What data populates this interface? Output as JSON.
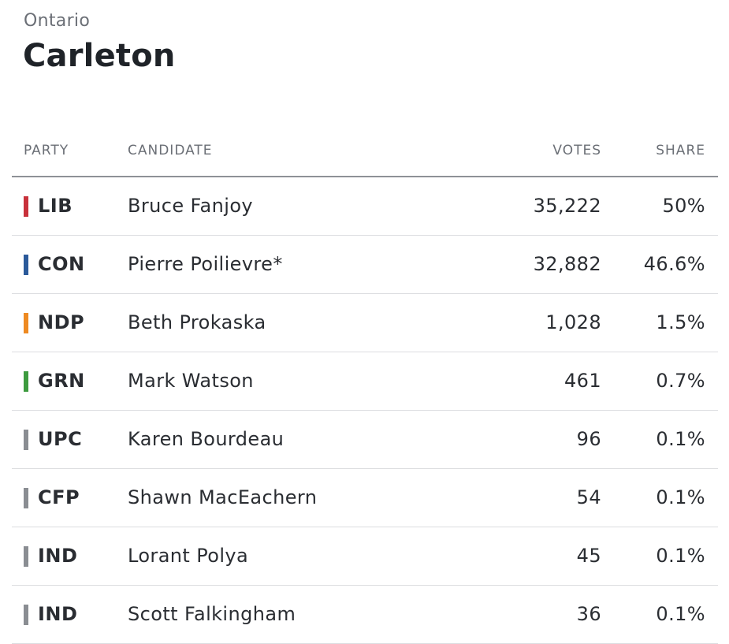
{
  "header": {
    "province": "Ontario",
    "riding": "Carleton"
  },
  "table": {
    "columns": {
      "party": "PARTY",
      "candidate": "CANDIDATE",
      "votes": "VOTES",
      "share": "SHARE"
    },
    "rows": [
      {
        "party": "LIB",
        "candidate": "Bruce Fanjoy",
        "votes": "35,222",
        "share": "50%",
        "color": "#c8313b"
      },
      {
        "party": "CON",
        "candidate": "Pierre Poilievre*",
        "votes": "32,882",
        "share": "46.6%",
        "color": "#2b5a9a"
      },
      {
        "party": "NDP",
        "candidate": "Beth Prokaska",
        "votes": "1,028",
        "share": "1.5%",
        "color": "#ee8a22"
      },
      {
        "party": "GRN",
        "candidate": "Mark Watson",
        "votes": "461",
        "share": "0.7%",
        "color": "#3d9b3f"
      },
      {
        "party": "UPC",
        "candidate": "Karen Bourdeau",
        "votes": "96",
        "share": "0.1%",
        "color": "#8a8d92"
      },
      {
        "party": "CFP",
        "candidate": "Shawn MacEachern",
        "votes": "54",
        "share": "0.1%",
        "color": "#8a8d92"
      },
      {
        "party": "IND",
        "candidate": "Lorant Polya",
        "votes": "45",
        "share": "0.1%",
        "color": "#8a8d92"
      },
      {
        "party": "IND",
        "candidate": "Scott Falkingham",
        "votes": "36",
        "share": "0.1%",
        "color": "#8a8d92"
      }
    ]
  }
}
